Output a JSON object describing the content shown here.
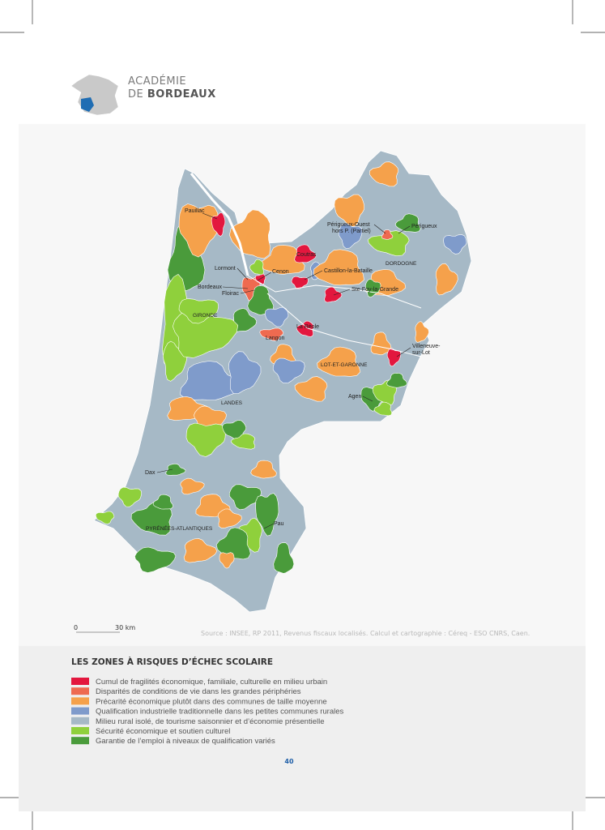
{
  "header": {
    "line1": "ACADÉMIE",
    "line2_prefix": "DE",
    "line2_bold": "BORDEAUX"
  },
  "map": {
    "labels": [
      "Pauillac",
      "Lormont",
      "Cenon",
      "Bordeaux",
      "Floirac",
      "GIRONDE",
      "Coutras",
      "Castillon-la-Bataille",
      "Périgueux-Ouest",
      "hors P. (Partiel)",
      "Périgueux",
      "DORDOGNE",
      "Ste-Foy-la-Grande",
      "La Réole",
      "Langon",
      "Villeneuve-",
      "sur-Lot",
      "LOT-ET-GARONNE",
      "Agen",
      "LANDES",
      "Dax",
      "PYRÉNÉES-ATLANTIQUES",
      "Pau"
    ]
  },
  "scale": {
    "start": "0",
    "end": "30 km"
  },
  "source": "Source : INSEE, RP 2011, Revenus fiscaux localisés. Calcul et cartographie : Céreq - ESO CNRS, Caen.",
  "legend": {
    "title": "LES ZONES À RISQUES D’ÉCHEC SCOLAIRE",
    "items": [
      {
        "label": "Cumul de fragilités économique, familiale, culturelle en milieu urbain",
        "color": "#e3173e"
      },
      {
        "label": "Disparités de conditions de vie dans les grandes périphéries",
        "color": "#ee6a50"
      },
      {
        "label": "Précarité économique plutôt dans des communes de taille moyenne",
        "color": "#f5a14b"
      },
      {
        "label": "Qualification industrielle traditionnelle dans les petites communes rurales",
        "color": "#7f9bcb"
      },
      {
        "label": "Milieu rural isolé, de tourisme saisonnier et d’économie présentielle",
        "color": "#a6b9c6"
      },
      {
        "label": "Sécurité économique et soutien culturel",
        "color": "#8fd03c"
      },
      {
        "label": "Garantie de l’emploi à niveaux de qualification variés",
        "color": "#4a9b3b"
      }
    ]
  },
  "page_number": "40"
}
